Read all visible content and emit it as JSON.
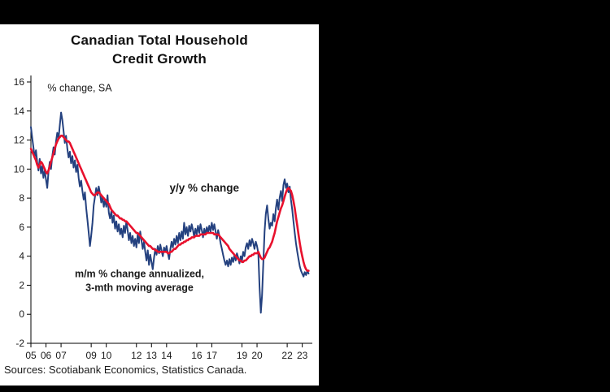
{
  "window": {
    "background_color": "#000000",
    "panel_color": "#ffffff"
  },
  "chart_panel": {
    "title_line1": "Canadian Total Household",
    "title_line2": "Credit Growth",
    "unit_label": "% change, SA",
    "source_note": "Sources: Scotiabank Economics, Statistics Canada."
  },
  "chart_data": {
    "type": "line",
    "title": "Canadian Total Household Credit Growth",
    "subtitle": "% change, SA",
    "grid": false,
    "legend_position": "inline-annotations",
    "x_start_year": 2005,
    "x_step_months": 1,
    "ylim": [
      -2,
      16
    ],
    "y_tick_step": 2,
    "y_tick_labels": [
      "-2",
      "0",
      "2",
      "4",
      "6",
      "8",
      "10",
      "12",
      "14",
      "16"
    ],
    "x_tick_years": [
      2005,
      2006,
      2007,
      2009,
      2010,
      2012,
      2013,
      2014,
      2016,
      2017,
      2019,
      2020,
      2022,
      2023
    ],
    "x_tick_labels": [
      "05",
      "06",
      "07",
      "09",
      "10",
      "12",
      "13",
      "14",
      "16",
      "17",
      "19",
      "20",
      "22",
      "23"
    ],
    "colors": {
      "yoy": "#e8112d",
      "mm": "#24417f"
    },
    "series": [
      {
        "name": "m/m % change annualized, 3-mth moving average",
        "color": "#24417f",
        "width": 2,
        "values": [
          12.9,
          12.2,
          11.5,
          10.8,
          11.3,
          10.5,
          9.9,
          10.7,
          9.7,
          10.2,
          9.4,
          9.9,
          9.3,
          8.7,
          9.8,
          10.5,
          10.0,
          10.9,
          11.5,
          11.0,
          11.9,
          12.5,
          12.1,
          13.0,
          13.9,
          13.4,
          12.6,
          11.8,
          12.3,
          11.4,
          10.8,
          11.2,
          10.4,
          10.9,
          10.1,
          10.6,
          9.8,
          10.3,
          9.4,
          8.8,
          9.2,
          8.5,
          7.9,
          8.4,
          7.3,
          6.5,
          5.6,
          4.7,
          5.4,
          6.3,
          7.5,
          8.1,
          8.7,
          8.2,
          8.8,
          8.3,
          7.7,
          8.1,
          7.4,
          7.9,
          7.4,
          8.2,
          7.0,
          6.6,
          7.1,
          6.3,
          6.8,
          5.9,
          6.4,
          5.7,
          6.2,
          5.5,
          5.9,
          5.3,
          6.1,
          5.6,
          6.4,
          5.8,
          5.1,
          5.6,
          4.9,
          5.4,
          4.7,
          5.2,
          4.6,
          5.5,
          4.9,
          5.7,
          5.1,
          4.5,
          5.0,
          4.3,
          3.7,
          4.4,
          3.4,
          4.1,
          3.6,
          3.1,
          3.9,
          4.5,
          4.1,
          4.7,
          4.2,
          4.8,
          4.4,
          4.0,
          4.6,
          4.3,
          4.7,
          4.2,
          3.8,
          4.5,
          5.0,
          4.6,
          5.2,
          4.8,
          5.4,
          4.9,
          5.6,
          5.1,
          5.7,
          5.2,
          6.3,
          5.5,
          6.0,
          5.4,
          6.1,
          5.7,
          6.2,
          5.8,
          5.3,
          5.9,
          5.5,
          6.1,
          5.6,
          6.2,
          5.8,
          5.3,
          5.9,
          5.5,
          6.0,
          5.6,
          6.1,
          5.7,
          6.3,
          5.8,
          6.2,
          5.7,
          5.2,
          5.8,
          5.4,
          4.9,
          4.5,
          4.1,
          3.7,
          3.4,
          3.7,
          3.3,
          3.8,
          3.4,
          3.9,
          3.6,
          4.1,
          3.7,
          4.2,
          3.9,
          3.5,
          4.0,
          3.7,
          4.3,
          4.0,
          4.6,
          4.9,
          4.5,
          5.1,
          4.7,
          5.2,
          4.9,
          4.5,
          5.0,
          4.7,
          4.2,
          1.9,
          0.1,
          1.3,
          3.6,
          5.7,
          6.9,
          7.5,
          6.6,
          5.9,
          6.3,
          6.1,
          6.9,
          6.4,
          7.3,
          7.9,
          7.2,
          8.0,
          8.5,
          7.8,
          8.9,
          9.3,
          8.7,
          9.0,
          8.4,
          8.8,
          7.9,
          7.2,
          6.4,
          5.6,
          4.9,
          4.3,
          3.8,
          3.3,
          3.0,
          2.8,
          2.6,
          2.9,
          2.7,
          3.0,
          2.8
        ]
      },
      {
        "name": "y/y % change",
        "color": "#e8112d",
        "width": 2.6,
        "values": [
          11.4,
          11.2,
          11.0,
          10.8,
          10.6,
          10.3,
          10.1,
          10.3,
          10.5,
          10.4,
          10.2,
          10.0,
          9.8,
          9.7,
          9.9,
          10.2,
          10.5,
          10.8,
          11.1,
          11.4,
          11.7,
          11.9,
          12.1,
          12.2,
          12.3,
          12.3,
          12.2,
          12.1,
          12.0,
          11.9,
          11.9,
          11.8,
          11.6,
          11.4,
          11.2,
          11.0,
          10.8,
          10.6,
          10.4,
          10.2,
          10.0,
          9.8,
          9.6,
          9.4,
          9.2,
          9.0,
          8.8,
          8.6,
          8.4,
          8.3,
          8.2,
          8.2,
          8.3,
          8.4,
          8.4,
          8.3,
          8.2,
          8.1,
          8.0,
          7.9,
          7.8,
          7.7,
          7.6,
          7.4,
          7.2,
          7.1,
          7.0,
          6.9,
          6.8,
          6.8,
          6.7,
          6.6,
          6.6,
          6.5,
          6.5,
          6.4,
          6.4,
          6.3,
          6.2,
          6.1,
          6.0,
          5.9,
          5.8,
          5.7,
          5.6,
          5.6,
          5.5,
          5.4,
          5.3,
          5.2,
          5.1,
          5.0,
          4.9,
          4.8,
          4.7,
          4.7,
          4.6,
          4.5,
          4.5,
          4.4,
          4.4,
          4.3,
          4.3,
          4.3,
          4.3,
          4.3,
          4.3,
          4.3,
          4.3,
          4.2,
          4.2,
          4.3,
          4.3,
          4.4,
          4.5,
          4.5,
          4.6,
          4.7,
          4.8,
          4.8,
          4.9,
          4.9,
          5.0,
          5.0,
          5.1,
          5.1,
          5.2,
          5.2,
          5.3,
          5.3,
          5.3,
          5.4,
          5.4,
          5.4,
          5.4,
          5.5,
          5.5,
          5.5,
          5.5,
          5.5,
          5.6,
          5.6,
          5.6,
          5.6,
          5.6,
          5.6,
          5.5,
          5.5,
          5.5,
          5.5,
          5.4,
          5.3,
          5.2,
          5.1,
          5.0,
          4.9,
          4.8,
          4.7,
          4.5,
          4.4,
          4.3,
          4.2,
          4.1,
          4.0,
          3.9,
          3.8,
          3.7,
          3.7,
          3.6,
          3.6,
          3.7,
          3.7,
          3.8,
          3.9,
          4.0,
          4.0,
          4.1,
          4.1,
          4.2,
          4.2,
          4.2,
          4.3,
          4.1,
          3.9,
          3.8,
          3.8,
          3.9,
          4.1,
          4.3,
          4.5,
          4.6,
          4.8,
          5.0,
          5.3,
          5.6,
          6.0,
          6.4,
          6.7,
          7.0,
          7.3,
          7.5,
          7.8,
          8.1,
          8.4,
          8.6,
          8.7,
          8.6,
          8.5,
          8.2,
          7.8,
          7.3,
          6.7,
          6.1,
          5.5,
          4.9,
          4.4,
          4.0,
          3.6,
          3.3,
          3.1,
          3.0,
          3.0
        ]
      }
    ],
    "annotations": [
      {
        "lines": [
          "% change, SA"
        ],
        "x": 2006.1,
        "y": 15.35,
        "color": "#333333",
        "bold": false,
        "size": 12.5,
        "anchor": "start"
      },
      {
        "lines": [
          "y/y % change"
        ],
        "x": 2014.2,
        "y": 8.45,
        "color": "#e8112d",
        "bold": true,
        "size": 13.5,
        "anchor": "start"
      },
      {
        "lines": [
          "m/m % change annualized,",
          "3-mth moving average"
        ],
        "x": 2012.2,
        "y": 2.55,
        "color": "#24417f",
        "bold": true,
        "size": 12.5,
        "anchor": "middle"
      }
    ]
  }
}
